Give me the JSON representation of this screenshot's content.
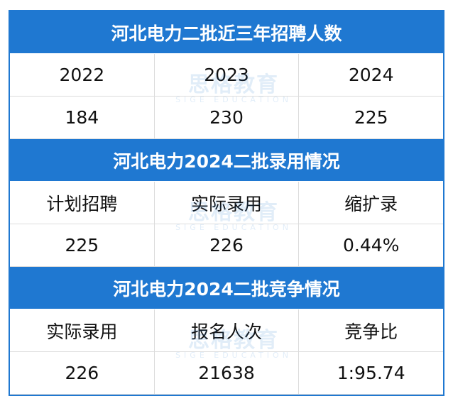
{
  "table": {
    "sections": [
      {
        "title": "河北电力二批近三年招聘人数",
        "rows": [
          [
            "2022",
            "2023",
            "2024"
          ],
          [
            "184",
            "230",
            "225"
          ]
        ]
      },
      {
        "title": "河北电力2024二批录用情况",
        "rows": [
          [
            "计划招聘",
            "实际录用",
            "缩扩录"
          ],
          [
            "225",
            "226",
            "0.44%"
          ]
        ]
      },
      {
        "title": "河北电力2024二批竞争情况",
        "rows": [
          [
            "实际录用",
            "报名人次",
            "竞争比"
          ],
          [
            "226",
            "21638",
            "1:95.74"
          ]
        ]
      }
    ]
  },
  "watermark": {
    "brand": "思格教育",
    "sub": "SIGE EDUCATION"
  }
}
